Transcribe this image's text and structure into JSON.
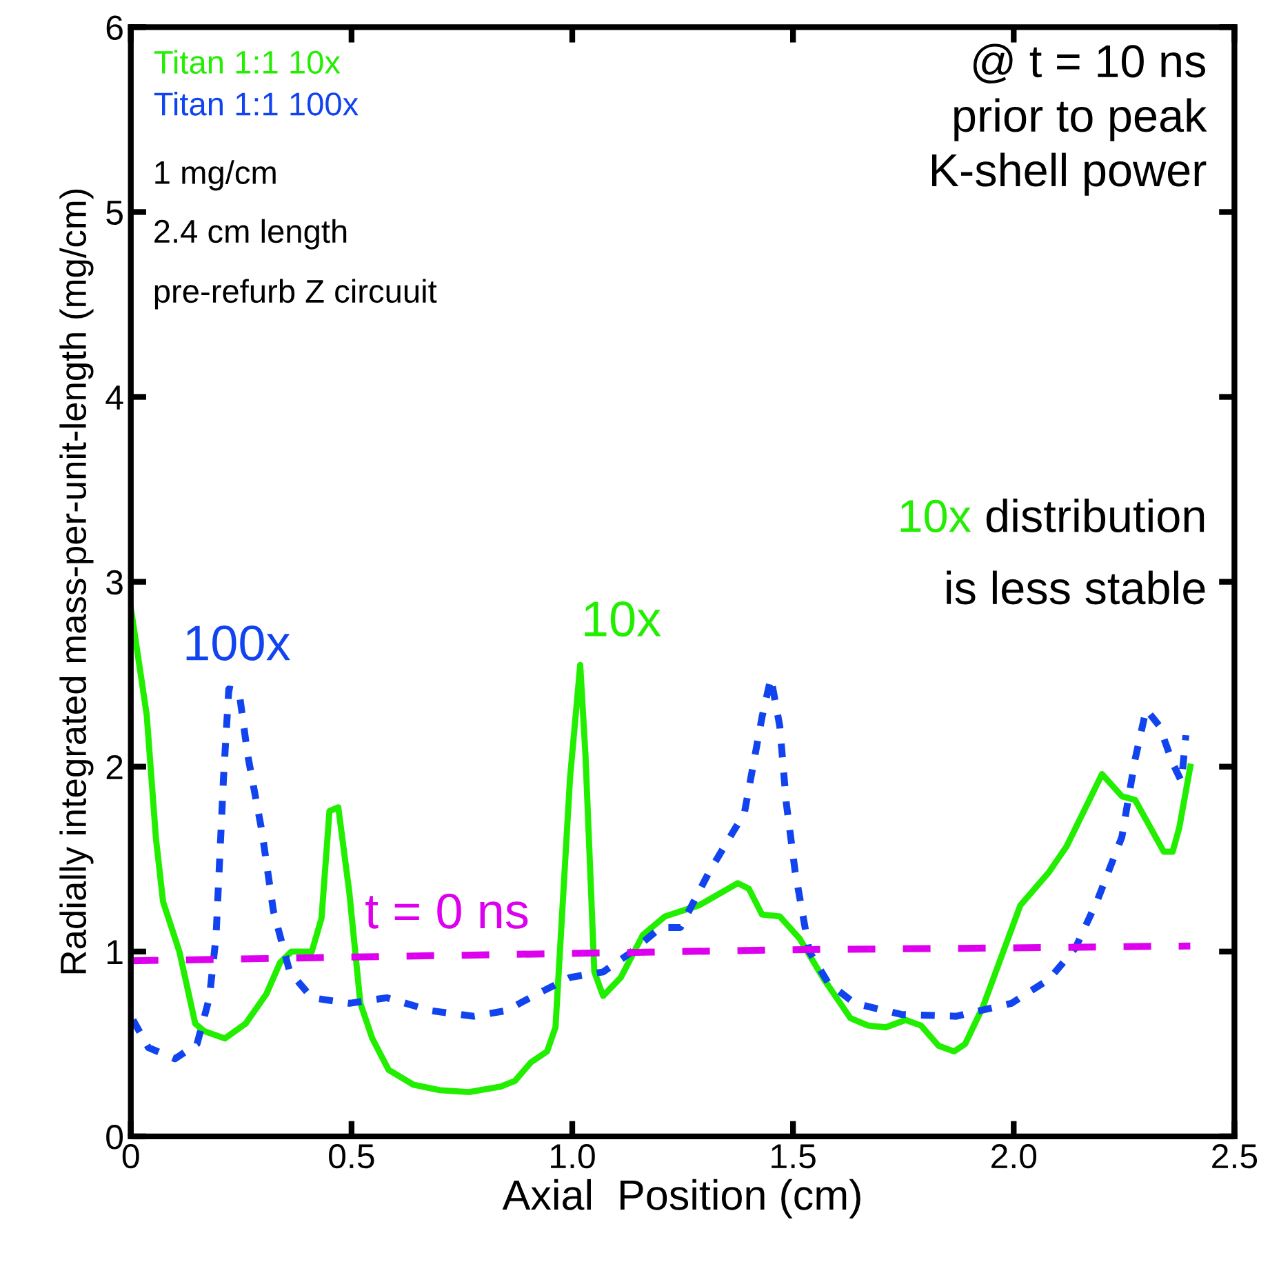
{
  "chart_data": {
    "type": "line",
    "xlabel": "Axial  Position (cm)",
    "ylabel": "Radially integrated mass-per-unit-length (mg/cm)",
    "xlim": [
      0,
      2.5
    ],
    "ylim": [
      0,
      6
    ],
    "xticks": [
      0,
      0.5,
      {
        "value": 1,
        "label": "1.0"
      },
      1.5,
      {
        "value": 2,
        "label": "2.0"
      },
      2.5
    ],
    "yticks": [
      0,
      1,
      2,
      3,
      4,
      5,
      6
    ],
    "legend": "top left",
    "grid": false,
    "series": [
      {
        "name": "Titan 1:1 10x",
        "color": "#22ee00",
        "line_style": "solid",
        "x": [
          0,
          0.036,
          0.057,
          0.073,
          0.11,
          0.146,
          0.166,
          0.213,
          0.26,
          0.307,
          0.338,
          0.364,
          0.41,
          0.432,
          0.45,
          0.47,
          0.495,
          0.52,
          0.547,
          0.584,
          0.64,
          0.7,
          0.766,
          0.838,
          0.87,
          0.906,
          0.943,
          0.962,
          0.995,
          1.018,
          1.03,
          1.05,
          1.07,
          1.11,
          1.16,
          1.21,
          1.287,
          1.375,
          1.4,
          1.43,
          1.47,
          1.515,
          1.57,
          1.63,
          1.67,
          1.71,
          1.755,
          1.79,
          1.83,
          1.865,
          1.89,
          1.93,
          2.015,
          2.08,
          2.12,
          2.2,
          2.245,
          2.275,
          2.34,
          2.36,
          2.375,
          2.4
        ],
        "values": [
          2.86,
          2.28,
          1.61,
          1.27,
          1.0,
          0.61,
          0.57,
          0.53,
          0.61,
          0.77,
          0.94,
          1.0,
          1.0,
          1.18,
          1.76,
          1.78,
          1.32,
          0.72,
          0.53,
          0.36,
          0.28,
          0.25,
          0.24,
          0.27,
          0.3,
          0.4,
          0.46,
          0.59,
          1.94,
          2.55,
          2.06,
          0.89,
          0.76,
          0.86,
          1.09,
          1.19,
          1.25,
          1.37,
          1.34,
          1.2,
          1.19,
          1.07,
          0.85,
          0.64,
          0.6,
          0.59,
          0.63,
          0.6,
          0.49,
          0.46,
          0.5,
          0.7,
          1.25,
          1.43,
          1.57,
          1.96,
          1.84,
          1.82,
          1.54,
          1.54,
          1.67,
          2.0
        ]
      },
      {
        "name": "Titan 1:1 100x",
        "color": "#1144ee",
        "line_style": "dotted",
        "x": [
          0.005,
          0.04,
          0.1,
          0.15,
          0.178,
          0.193,
          0.21,
          0.222,
          0.245,
          0.265,
          0.297,
          0.323,
          0.36,
          0.41,
          0.495,
          0.58,
          0.68,
          0.776,
          0.85,
          0.92,
          0.995,
          1.07,
          1.13,
          1.2,
          1.245,
          1.31,
          1.39,
          1.43,
          1.45,
          1.47,
          1.485,
          1.505,
          1.537,
          1.58,
          1.64,
          1.745,
          1.87,
          1.995,
          2.08,
          2.14,
          2.19,
          2.245,
          2.275,
          2.3,
          2.33,
          2.36,
          2.38,
          2.39
        ],
        "values": [
          0.63,
          0.48,
          0.42,
          0.5,
          0.75,
          1.08,
          1.94,
          2.42,
          2.41,
          2.06,
          1.65,
          1.22,
          0.89,
          0.75,
          0.72,
          0.75,
          0.68,
          0.65,
          0.68,
          0.77,
          0.86,
          0.89,
          0.99,
          1.13,
          1.13,
          1.43,
          1.75,
          2.27,
          2.48,
          2.22,
          1.8,
          1.43,
          1.0,
          0.83,
          0.72,
          0.66,
          0.65,
          0.72,
          0.85,
          1.02,
          1.28,
          1.62,
          2.04,
          2.31,
          2.22,
          2.02,
          1.92,
          2.17
        ]
      },
      {
        "name": "t = 0 ns",
        "color": "#dd00ee",
        "line_style": "dashed",
        "x": [
          0,
          0.5,
          1.0,
          1.5,
          2.0,
          2.4
        ],
        "values": [
          0.95,
          0.97,
          0.99,
          1.01,
          1.02,
          1.03
        ]
      }
    ],
    "annotations": [
      "1 mg/cm",
      "2.4 cm length",
      "pre-refurb Z circuuit",
      "@ t = 10 ns\nprior to peak\nK-shell power",
      "10x",
      "distribution",
      "is less stable",
      {
        "text": "100x",
        "x": 0.24,
        "y": 2.42
      },
      {
        "text": "10x",
        "x": 1.02,
        "y": 2.55
      }
    ]
  }
}
